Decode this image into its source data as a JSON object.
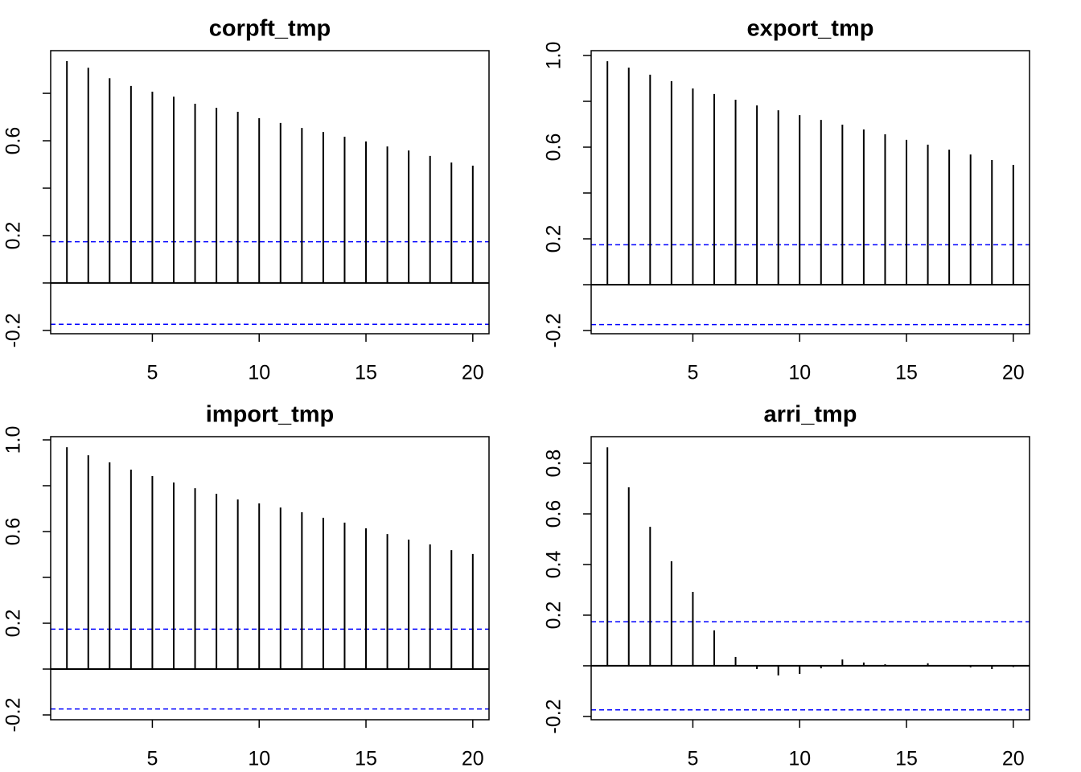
{
  "chart_data": [
    {
      "type": "stem",
      "title": "corpft_tmp",
      "color": "#000000",
      "ci_color": "#0000ff",
      "ci": 0.174,
      "x": [
        1,
        2,
        3,
        4,
        5,
        6,
        7,
        8,
        9,
        10,
        11,
        12,
        13,
        14,
        15,
        16,
        17,
        18,
        19,
        20
      ],
      "values": [
        0.936,
        0.908,
        0.864,
        0.831,
        0.807,
        0.786,
        0.756,
        0.739,
        0.722,
        0.695,
        0.675,
        0.654,
        0.637,
        0.617,
        0.597,
        0.576,
        0.559,
        0.536,
        0.508,
        0.495
      ],
      "xlim": [
        0.24,
        20.76
      ],
      "ylim": [
        -0.214,
        0.98
      ],
      "xticks": [
        5,
        10,
        15,
        20
      ],
      "yticks": [
        -0.2,
        0.2,
        0.6
      ],
      "yticks_minor": [
        0,
        0.4,
        0.8
      ]
    },
    {
      "type": "stem",
      "title": "export_tmp",
      "color": "#000000",
      "ci_color": "#0000ff",
      "ci": 0.174,
      "x": [
        1,
        2,
        3,
        4,
        5,
        6,
        7,
        8,
        9,
        10,
        11,
        12,
        13,
        14,
        15,
        16,
        17,
        18,
        19,
        20
      ],
      "values": [
        0.975,
        0.947,
        0.916,
        0.888,
        0.856,
        0.832,
        0.807,
        0.782,
        0.761,
        0.74,
        0.719,
        0.698,
        0.677,
        0.656,
        0.632,
        0.611,
        0.589,
        0.568,
        0.544,
        0.523
      ],
      "xlim": [
        0.24,
        20.76
      ],
      "ylim": [
        -0.214,
        1.021
      ],
      "xticks": [
        5,
        10,
        15,
        20
      ],
      "yticks": [
        -0.2,
        0.2,
        0.6,
        {
          "value": 1,
          "label": "1.0"
        }
      ],
      "yticks_minor": [
        0,
        0.4,
        0.8
      ]
    },
    {
      "type": "stem",
      "title": "import_tmp",
      "color": "#000000",
      "ci_color": "#0000ff",
      "ci": 0.174,
      "x": [
        1,
        2,
        3,
        4,
        5,
        6,
        7,
        8,
        9,
        10,
        11,
        12,
        13,
        14,
        15,
        16,
        17,
        18,
        19,
        20
      ],
      "values": [
        0.968,
        0.933,
        0.902,
        0.87,
        0.842,
        0.814,
        0.789,
        0.765,
        0.74,
        0.723,
        0.705,
        0.684,
        0.66,
        0.639,
        0.614,
        0.589,
        0.565,
        0.544,
        0.519,
        0.502
      ],
      "xlim": [
        0.24,
        20.76
      ],
      "ylim": [
        -0.221,
        1.014
      ],
      "xticks": [
        5,
        10,
        15,
        20
      ],
      "yticks": [
        -0.2,
        0.2,
        0.6,
        {
          "value": 1,
          "label": "1.0"
        }
      ],
      "yticks_minor": [
        0,
        0.4,
        0.8
      ]
    },
    {
      "type": "stem",
      "title": "arri_tmp",
      "color": "#000000",
      "ci_color": "#0000ff",
      "ci": 0.174,
      "x": [
        1,
        2,
        3,
        4,
        5,
        6,
        7,
        8,
        9,
        10,
        11,
        12,
        13,
        14,
        15,
        16,
        17,
        18,
        19,
        20
      ],
      "values": [
        0.863,
        0.705,
        0.549,
        0.413,
        0.292,
        0.14,
        0.035,
        -0.013,
        -0.038,
        -0.032,
        -0.01,
        0.025,
        0.013,
        0.006,
        0.002,
        0.01,
        0.001,
        -0.006,
        -0.013,
        -0.005
      ],
      "xlim": [
        0.24,
        20.76
      ],
      "ylim": [
        -0.213,
        0.905
      ],
      "xticks": [
        5,
        10,
        15,
        20
      ],
      "yticks": [
        -0.2,
        0.2,
        0.4,
        0.6,
        0.8
      ],
      "yticks_minor": [
        0
      ]
    }
  ]
}
